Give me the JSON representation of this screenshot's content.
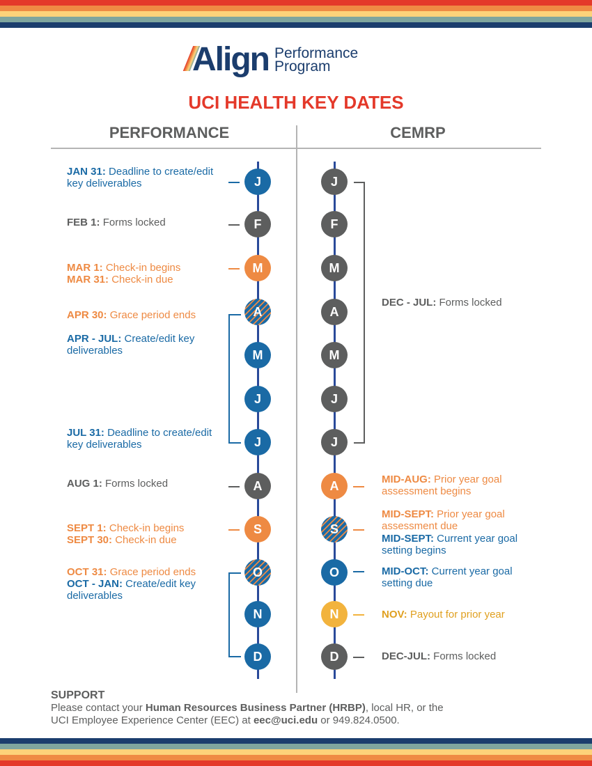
{
  "colors": {
    "blue": "#1a6aa5",
    "gray": "#5d5e5e",
    "orange": "#ee8a43",
    "yellow": "#f2b33d",
    "red": "#e4392a",
    "navy": "#1b3d6d"
  },
  "logo": {
    "mark": "Align",
    "sub_line1": "Performance",
    "sub_line2": "Program"
  },
  "title": "UCI HEALTH KEY DATES",
  "columns": {
    "left": "PERFORMANCE",
    "right": "CEMRP"
  },
  "performance_months": [
    {
      "letter": "J",
      "style": "blue"
    },
    {
      "letter": "F",
      "style": "gray"
    },
    {
      "letter": "M",
      "style": "orange"
    },
    {
      "letter": "A",
      "style": "hatch"
    },
    {
      "letter": "M",
      "style": "blue"
    },
    {
      "letter": "J",
      "style": "blue"
    },
    {
      "letter": "J",
      "style": "blue"
    },
    {
      "letter": "A",
      "style": "gray"
    },
    {
      "letter": "S",
      "style": "orange"
    },
    {
      "letter": "O",
      "style": "hatch"
    },
    {
      "letter": "N",
      "style": "blue"
    },
    {
      "letter": "D",
      "style": "blue"
    }
  ],
  "cemrp_months": [
    {
      "letter": "J",
      "style": "gray"
    },
    {
      "letter": "F",
      "style": "gray"
    },
    {
      "letter": "M",
      "style": "gray"
    },
    {
      "letter": "A",
      "style": "gray"
    },
    {
      "letter": "M",
      "style": "gray"
    },
    {
      "letter": "J",
      "style": "gray"
    },
    {
      "letter": "J",
      "style": "gray"
    },
    {
      "letter": "A",
      "style": "orange"
    },
    {
      "letter": "S",
      "style": "hatch"
    },
    {
      "letter": "O",
      "style": "blue"
    },
    {
      "letter": "N",
      "style": "yellow"
    },
    {
      "letter": "D",
      "style": "gray"
    }
  ],
  "performance_notes": [
    {
      "label": "JAN 31:",
      "text": "Deadline to create/edit key deliverables",
      "color": "blue"
    },
    {
      "label": "FEB 1:",
      "text": "Forms locked",
      "color": "gray"
    },
    {
      "label": "MAR 1:",
      "text": "Check-in begins",
      "color": "orange"
    },
    {
      "label": "MAR 31:",
      "text": "Check-in due",
      "color": "orange"
    },
    {
      "label": "APR 30:",
      "text": "Grace period ends",
      "color": "orange"
    },
    {
      "label": "APR - JUL:",
      "text": "Create/edit key deliverables",
      "color": "blue"
    },
    {
      "label": "JUL 31:",
      "text": "Deadline to create/edit key deliverables",
      "color": "blue"
    },
    {
      "label": "AUG 1:",
      "text": "Forms locked",
      "color": "gray"
    },
    {
      "label": "SEPT 1:",
      "text": "Check-in begins",
      "color": "orange"
    },
    {
      "label": "SEPT 30:",
      "text": "Check-in due",
      "color": "orange"
    },
    {
      "label": "OCT 31:",
      "text": "Grace period ends",
      "color": "orange"
    },
    {
      "label": "OCT - JAN:",
      "text": "Create/edit key deliverables",
      "color": "blue"
    }
  ],
  "cemrp_notes": [
    {
      "label": "DEC - JUL:",
      "text": "Forms locked",
      "color": "gray"
    },
    {
      "label": "MID-AUG:",
      "text": "Prior year goal assessment begins",
      "color": "orange"
    },
    {
      "label": "MID-SEPT:",
      "text": "Prior year goal assessment due",
      "color": "orange"
    },
    {
      "label": "MID-SEPT:",
      "text": "Current year goal setting begins",
      "color": "blue"
    },
    {
      "label": "MID-OCT:",
      "text": "Current year goal setting due",
      "color": "blue"
    },
    {
      "label": "NOV:",
      "text": "Payout for prior year",
      "color": "yellow"
    },
    {
      "label": "DEC-JUL:",
      "text": "Forms locked",
      "color": "gray"
    }
  ],
  "support": {
    "heading": "SUPPORT",
    "line1_a": "Please contact your ",
    "line1_b": "Human Resources Business Partner (HRBP)",
    "line1_c": ", local HR, or the",
    "line2_a": "UCI Employee Experience Center (EEC) at ",
    "line2_b": "eec@uci.edu",
    "line2_c": " or 949.824.0500."
  }
}
